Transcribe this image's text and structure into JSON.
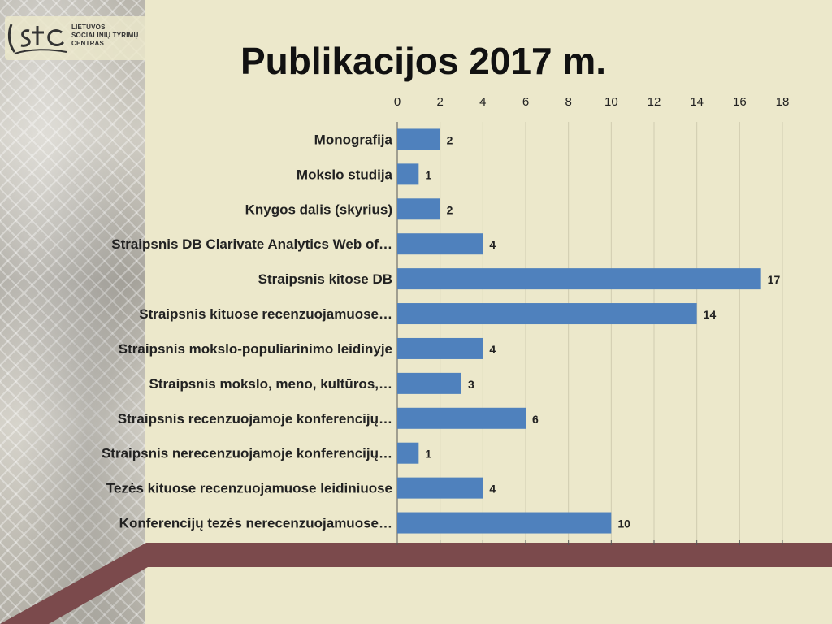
{
  "logo": {
    "mark_text": "LSTC",
    "lines": [
      "LIETUVOS",
      "SOCIALINIŲ TYRIMŲ",
      "CENTRAS"
    ]
  },
  "title": "Publikacijos 2017 m.",
  "colors": {
    "background": "#ece8cb",
    "bar": "#4f81bd",
    "band": "#7b4a4c",
    "grid": "#d0ccb0"
  },
  "chart_data": {
    "type": "bar",
    "orientation": "horizontal",
    "title": "",
    "xlim": [
      0,
      18
    ],
    "x_ticks": [
      0,
      2,
      4,
      6,
      8,
      10,
      12,
      14,
      16,
      18
    ],
    "x_axis_position": "top",
    "grid": true,
    "categories": [
      "Monografija",
      "Mokslo studija",
      "Knygos dalis (skyrius)",
      "Straipsnis DB Clarivate Analytics Web of…",
      "Straipsnis kitose DB",
      "Straipsnis kituose recenzuojamuose…",
      "Straipsnis mokslo-populiarinimo leidinyje",
      "Straipsnis mokslo, meno, kultūros,…",
      "Straipsnis recenzuojamoje konferencijų…",
      "Straipsnis nerecenzuojamoje konferencijų…",
      "Tezės kituose recenzuojamuose leidiniuose",
      "Konferencijų tezės nerecenzuojamuose…"
    ],
    "values": [
      2,
      1,
      2,
      4,
      17,
      14,
      4,
      3,
      6,
      1,
      4,
      10
    ]
  }
}
